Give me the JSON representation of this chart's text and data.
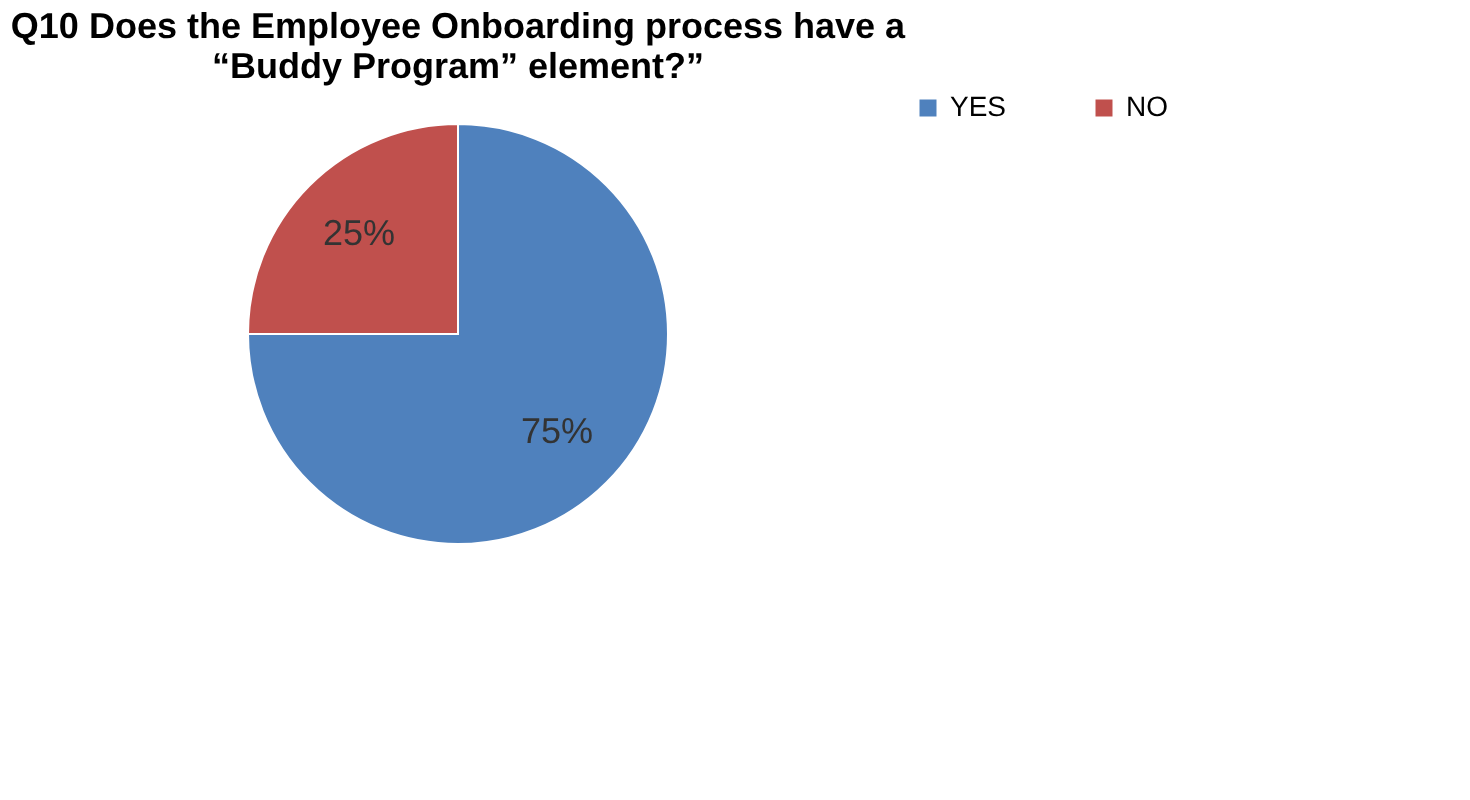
{
  "chart_data": {
    "type": "pie",
    "title": [
      "Q10 Does the Employee Onboarding process have a",
      "“Buddy Program” element?”"
    ],
    "categories": [
      "YES",
      "NO"
    ],
    "values": [
      75,
      25
    ],
    "colors": [
      "#4f81bd",
      "#c0504d"
    ],
    "value_labels": [
      "75%",
      "25%"
    ],
    "legend": "right"
  }
}
